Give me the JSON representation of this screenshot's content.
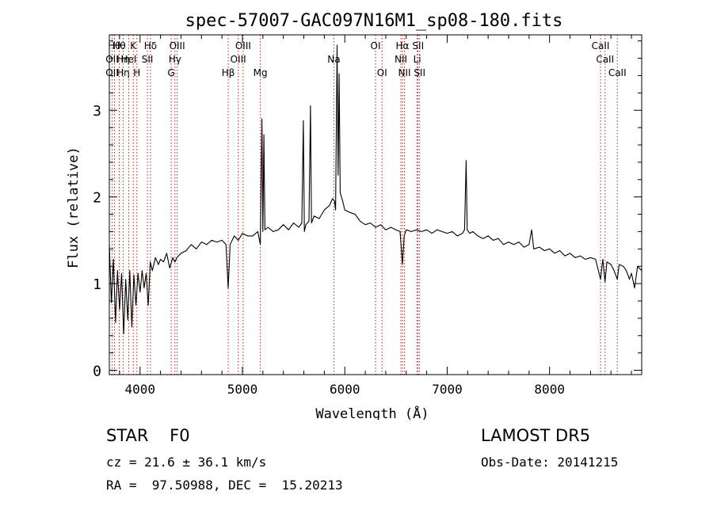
{
  "chart_data": {
    "type": "line",
    "title": "spec-57007-GAC097N16M1_sp08-180.fits",
    "xlabel": "Wavelength (Å)",
    "ylabel": "Flux (relative)",
    "xlim": [
      3700,
      8900
    ],
    "ylim": [
      -0.05,
      3.87
    ],
    "xticks": [
      4000,
      5000,
      6000,
      7000,
      8000
    ],
    "yticks": [
      0,
      1,
      2,
      3
    ],
    "grid": false,
    "series": [
      {
        "line_color": "#000000",
        "points": [
          [
            3700,
            1.45
          ],
          [
            3720,
            0.78
          ],
          [
            3740,
            1.28
          ],
          [
            3760,
            0.55
          ],
          [
            3780,
            1.15
          ],
          [
            3800,
            0.7
          ],
          [
            3820,
            1.12
          ],
          [
            3840,
            0.42
          ],
          [
            3860,
            1.05
          ],
          [
            3880,
            0.58
          ],
          [
            3900,
            1.15
          ],
          [
            3920,
            0.5
          ],
          [
            3940,
            1.1
          ],
          [
            3960,
            0.75
          ],
          [
            3980,
            1.12
          ],
          [
            4000,
            0.9
          ],
          [
            4020,
            1.15
          ],
          [
            4040,
            0.95
          ],
          [
            4060,
            1.12
          ],
          [
            4080,
            0.75
          ],
          [
            4100,
            1.25
          ],
          [
            4120,
            1.15
          ],
          [
            4150,
            1.3
          ],
          [
            4180,
            1.22
          ],
          [
            4200,
            1.28
          ],
          [
            4230,
            1.25
          ],
          [
            4260,
            1.35
          ],
          [
            4290,
            1.18
          ],
          [
            4320,
            1.3
          ],
          [
            4340,
            1.25
          ],
          [
            4360,
            1.3
          ],
          [
            4400,
            1.35
          ],
          [
            4450,
            1.38
          ],
          [
            4500,
            1.45
          ],
          [
            4550,
            1.4
          ],
          [
            4600,
            1.48
          ],
          [
            4650,
            1.45
          ],
          [
            4700,
            1.5
          ],
          [
            4750,
            1.48
          ],
          [
            4800,
            1.5
          ],
          [
            4840,
            1.45
          ],
          [
            4861,
            0.95
          ],
          [
            4880,
            1.45
          ],
          [
            4920,
            1.55
          ],
          [
            4960,
            1.5
          ],
          [
            5000,
            1.58
          ],
          [
            5050,
            1.55
          ],
          [
            5100,
            1.55
          ],
          [
            5150,
            1.6
          ],
          [
            5175,
            1.45
          ],
          [
            5190,
            2.9
          ],
          [
            5200,
            1.6
          ],
          [
            5210,
            2.72
          ],
          [
            5220,
            1.62
          ],
          [
            5250,
            1.65
          ],
          [
            5300,
            1.6
          ],
          [
            5350,
            1.62
          ],
          [
            5400,
            1.68
          ],
          [
            5450,
            1.62
          ],
          [
            5500,
            1.7
          ],
          [
            5550,
            1.65
          ],
          [
            5580,
            1.7
          ],
          [
            5595,
            2.88
          ],
          [
            5605,
            1.6
          ],
          [
            5620,
            1.68
          ],
          [
            5650,
            1.72
          ],
          [
            5665,
            3.05
          ],
          [
            5675,
            1.7
          ],
          [
            5700,
            1.78
          ],
          [
            5750,
            1.75
          ],
          [
            5800,
            1.85
          ],
          [
            5850,
            1.9
          ],
          [
            5880,
            1.98
          ],
          [
            5900,
            1.95
          ],
          [
            5910,
            1.85
          ],
          [
            5925,
            3.75
          ],
          [
            5935,
            2.25
          ],
          [
            5945,
            3.42
          ],
          [
            5955,
            2.05
          ],
          [
            5980,
            1.95
          ],
          [
            6000,
            1.85
          ],
          [
            6050,
            1.82
          ],
          [
            6100,
            1.8
          ],
          [
            6150,
            1.72
          ],
          [
            6200,
            1.68
          ],
          [
            6250,
            1.7
          ],
          [
            6300,
            1.65
          ],
          [
            6350,
            1.68
          ],
          [
            6400,
            1.62
          ],
          [
            6450,
            1.65
          ],
          [
            6500,
            1.62
          ],
          [
            6540,
            1.6
          ],
          [
            6563,
            1.22
          ],
          [
            6580,
            1.55
          ],
          [
            6600,
            1.62
          ],
          [
            6650,
            1.6
          ],
          [
            6700,
            1.62
          ],
          [
            6750,
            1.6
          ],
          [
            6800,
            1.62
          ],
          [
            6850,
            1.58
          ],
          [
            6900,
            1.62
          ],
          [
            6950,
            1.6
          ],
          [
            7000,
            1.58
          ],
          [
            7050,
            1.6
          ],
          [
            7100,
            1.55
          ],
          [
            7150,
            1.58
          ],
          [
            7170,
            1.62
          ],
          [
            7185,
            2.42
          ],
          [
            7195,
            1.62
          ],
          [
            7220,
            1.58
          ],
          [
            7250,
            1.6
          ],
          [
            7300,
            1.55
          ],
          [
            7350,
            1.52
          ],
          [
            7400,
            1.55
          ],
          [
            7450,
            1.5
          ],
          [
            7500,
            1.52
          ],
          [
            7550,
            1.45
          ],
          [
            7600,
            1.48
          ],
          [
            7650,
            1.45
          ],
          [
            7700,
            1.48
          ],
          [
            7750,
            1.42
          ],
          [
            7800,
            1.45
          ],
          [
            7825,
            1.62
          ],
          [
            7845,
            1.4
          ],
          [
            7900,
            1.42
          ],
          [
            7950,
            1.38
          ],
          [
            8000,
            1.4
          ],
          [
            8050,
            1.35
          ],
          [
            8100,
            1.38
          ],
          [
            8150,
            1.32
          ],
          [
            8200,
            1.35
          ],
          [
            8250,
            1.3
          ],
          [
            8300,
            1.32
          ],
          [
            8350,
            1.28
          ],
          [
            8400,
            1.3
          ],
          [
            8450,
            1.28
          ],
          [
            8498,
            1.05
          ],
          [
            8520,
            1.28
          ],
          [
            8542,
            1.02
          ],
          [
            8560,
            1.25
          ],
          [
            8600,
            1.22
          ],
          [
            8630,
            1.15
          ],
          [
            8662,
            1.05
          ],
          [
            8680,
            1.22
          ],
          [
            8720,
            1.2
          ],
          [
            8750,
            1.15
          ],
          [
            8780,
            1.05
          ],
          [
            8800,
            1.12
          ],
          [
            8830,
            0.95
          ],
          [
            8860,
            1.2
          ],
          [
            8900,
            1.15
          ]
        ]
      }
    ],
    "line_markers": [
      {
        "x": 3750,
        "rows": [
          {
            "row": 1,
            "label": "Hθ"
          }
        ]
      },
      {
        "x": 3797,
        "rows": [
          {
            "row": 1,
            "label": "Hθ"
          }
        ]
      },
      {
        "x": 3727,
        "rows": [
          {
            "row": 2,
            "label": "OII"
          },
          {
            "row": 3,
            "label": "OII"
          }
        ]
      },
      {
        "x": 3835,
        "rows": [
          {
            "row": 2,
            "label": "Hη"
          },
          {
            "row": 3,
            "label": "Hη"
          }
        ]
      },
      {
        "x": 3889,
        "rows": [
          {
            "row": 2,
            "label": "HeI"
          }
        ]
      },
      {
        "x": 3934,
        "rows": [
          {
            "row": 1,
            "label": "K"
          }
        ]
      },
      {
        "x": 3969,
        "rows": [
          {
            "row": 3,
            "label": "H"
          }
        ]
      },
      {
        "x": 4102,
        "rows": [
          {
            "row": 1,
            "label": "Hδ"
          }
        ]
      },
      {
        "x": 4072,
        "rows": [
          {
            "row": 2,
            "label": "SII"
          }
        ]
      },
      {
        "x": 4304,
        "rows": [
          {
            "row": 3,
            "label": "G"
          }
        ]
      },
      {
        "x": 4341,
        "rows": [
          {
            "row": 2,
            "label": "Hγ"
          }
        ]
      },
      {
        "x": 4363,
        "rows": [
          {
            "row": 1,
            "label": "OIII"
          }
        ]
      },
      {
        "x": 4861,
        "rows": [
          {
            "row": 3,
            "label": "Hβ"
          }
        ]
      },
      {
        "x": 4959,
        "rows": [
          {
            "row": 2,
            "label": "OIII"
          }
        ]
      },
      {
        "x": 5007,
        "rows": [
          {
            "row": 1,
            "label": "OIII"
          }
        ]
      },
      {
        "x": 5175,
        "rows": [
          {
            "row": 3,
            "label": "Mg"
          }
        ]
      },
      {
        "x": 5893,
        "rows": [
          {
            "row": 2,
            "label": "Na"
          }
        ]
      },
      {
        "x": 6300,
        "rows": [
          {
            "row": 1,
            "label": "OI"
          }
        ]
      },
      {
        "x": 6364,
        "rows": [
          {
            "row": 3,
            "label": "OI"
          }
        ]
      },
      {
        "x": 6548,
        "rows": [
          {
            "row": 2,
            "label": "NII"
          }
        ]
      },
      {
        "x": 6563,
        "rows": [
          {
            "row": 1,
            "label": "Hα"
          }
        ]
      },
      {
        "x": 6583,
        "rows": [
          {
            "row": 3,
            "label": "NII"
          }
        ]
      },
      {
        "x": 6707,
        "rows": [
          {
            "row": 2,
            "label": "Li"
          }
        ]
      },
      {
        "x": 6716,
        "rows": [
          {
            "row": 1,
            "label": "SII"
          }
        ]
      },
      {
        "x": 6731,
        "rows": [
          {
            "row": 3,
            "label": "SII"
          }
        ]
      },
      {
        "x": 8498,
        "rows": [
          {
            "row": 1,
            "label": "CaII"
          }
        ]
      },
      {
        "x": 8542,
        "rows": [
          {
            "row": 2,
            "label": "CaII"
          }
        ]
      },
      {
        "x": 8662,
        "rows": [
          {
            "row": 3,
            "label": "CaII"
          }
        ]
      }
    ],
    "marker_color": "#b22222"
  },
  "info": {
    "class_label": "STAR    F0",
    "survey": "LAMOST DR5",
    "cz": "cz = 21.6 ± 36.1 km/s",
    "obs_date": "Obs-Date: 20141215",
    "coords": "RA =  97.50988, DEC =  15.20213"
  }
}
